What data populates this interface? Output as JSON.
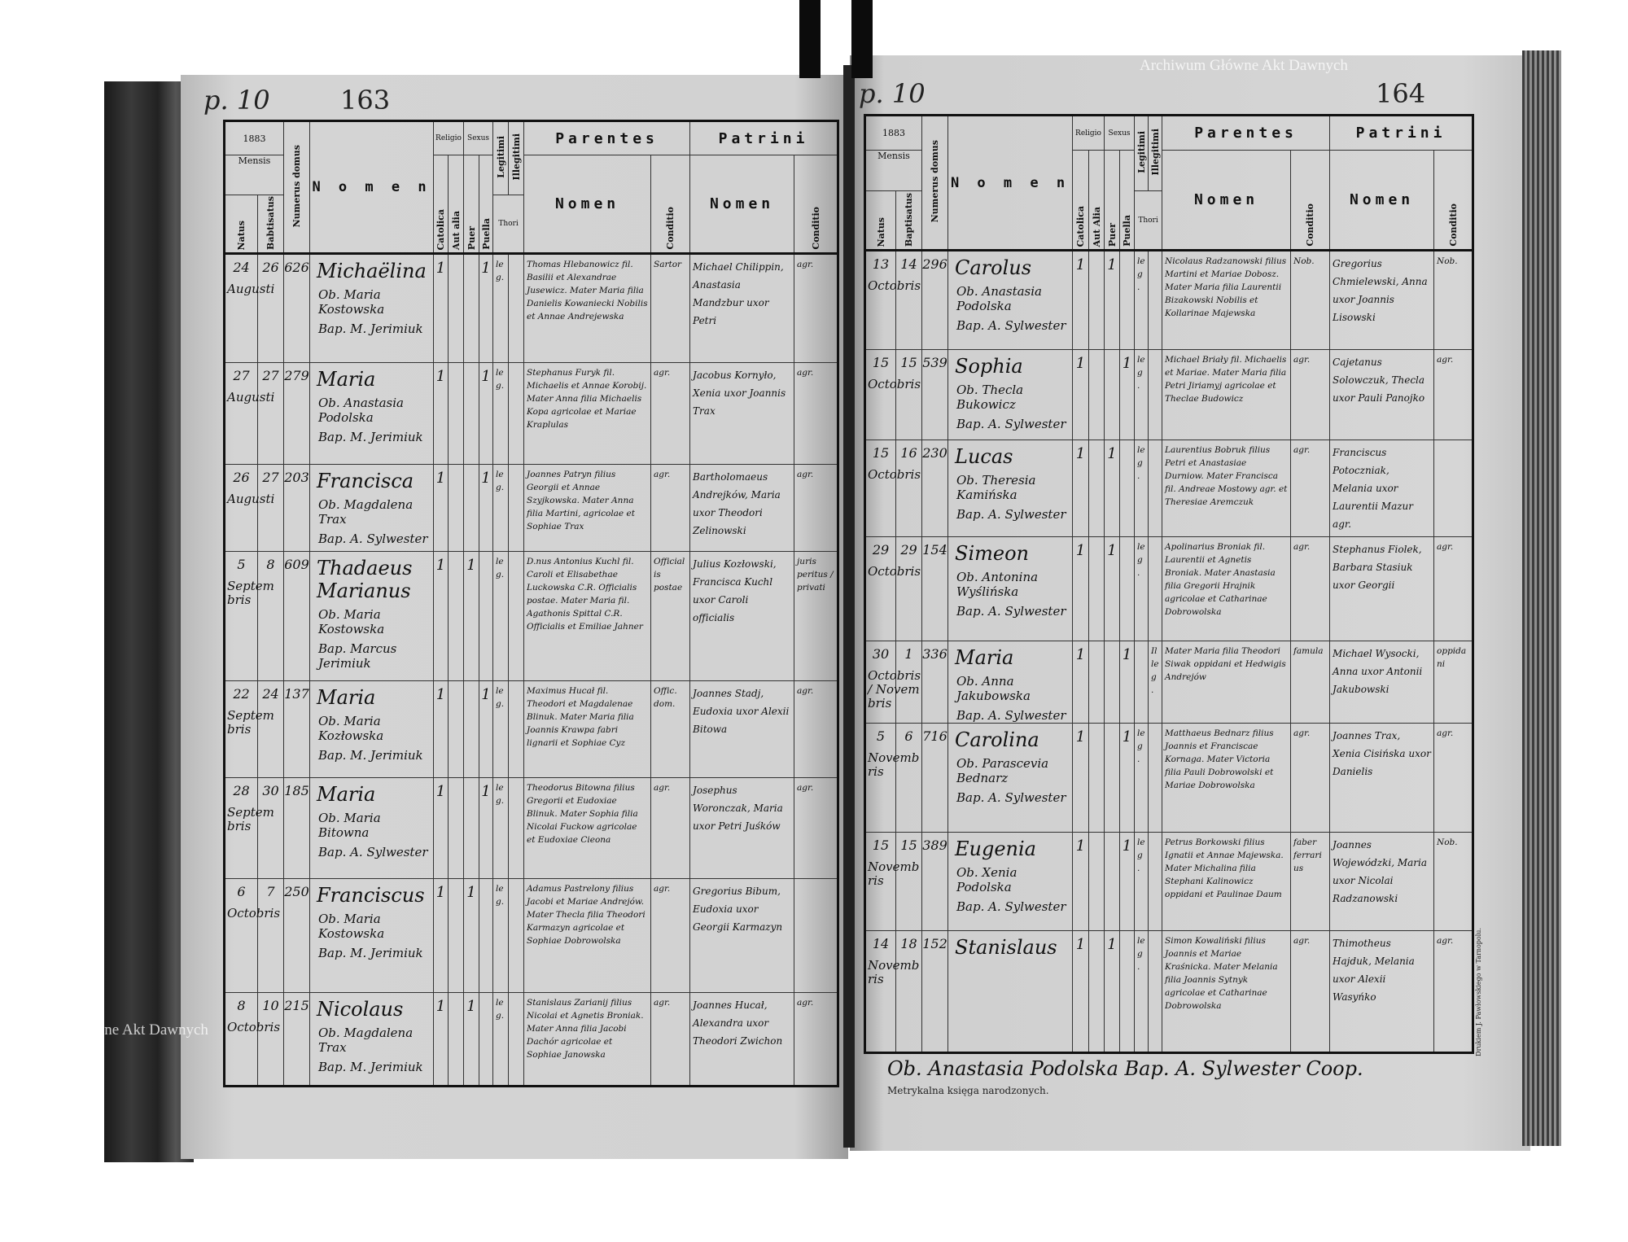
{
  "left_page": {
    "folio_mark": "p. 10",
    "page_number": "163",
    "header": {
      "year": "1883",
      "mensis": "Mensis",
      "natus": "Natus",
      "baptisatus": "Babtisatus",
      "numerus_domus": "Numerus domus",
      "nomen": "N o m e n",
      "religio": "Religio",
      "catolica": "Catolica",
      "aut_alia": "Aut alia",
      "sexus": "Sexus",
      "puer": "Puer",
      "puella": "Puella",
      "legitimi": "Legitimi",
      "illegitimi": "Illegitimi",
      "thori": "Thori",
      "parentes": "Parentes",
      "parentes_nomen": "Nomen",
      "parentes_conditio": "Conditio",
      "patrini": "Patrini",
      "patrini_nomen": "Nomen",
      "patrini_conditio": "Conditio"
    },
    "rows": [
      {
        "natus": "24",
        "baptisatus": "26",
        "mensis": "Augusti",
        "domus": "626",
        "nomen": "Michaëlina",
        "obstetrix": "Ob. Maria Kostowska",
        "baptizans": "Bap. M. Jerimiuk",
        "catolica": "1",
        "aut_alia": "",
        "puer": "",
        "puella": "1",
        "legitimi": "leg.",
        "illegitimi": "",
        "parentes": "Thomas Hlebanowicz fil. Basilii et Alexandrae Jusewicz. Mater Maria filia Danielis Kowaniecki Nobilis et Annae Andrejewska",
        "parentes_conditio": "Sartor",
        "patrini": "Michael Chilippin, Anastasia Mandzbur uxor Petri",
        "patrini_conditio": "agr."
      },
      {
        "natus": "27",
        "baptisatus": "27",
        "mensis": "Augusti",
        "domus": "279",
        "nomen": "Maria",
        "obstetrix": "Ob. Anastasia Podolska",
        "baptizans": "Bap. M. Jerimiuk",
        "catolica": "1",
        "aut_alia": "",
        "puer": "",
        "puella": "1",
        "legitimi": "leg.",
        "illegitimi": "",
        "parentes": "Stephanus Furyk fil. Michaelis et Annae Korobij. Mater Anna filia Michaelis Kopa agricolae et Mariae Kraplulas",
        "parentes_conditio": "agr.",
        "patrini": "Jacobus Kornyło, Xenia uxor Joannis Trax",
        "patrini_conditio": "agr."
      },
      {
        "natus": "26",
        "baptisatus": "27",
        "mensis": "Augusti",
        "domus": "203",
        "nomen": "Francisca",
        "obstetrix": "Ob. Magdalena Trax",
        "baptizans": "Bap. A. Sylwester",
        "catolica": "1",
        "aut_alia": "",
        "puer": "",
        "puella": "1",
        "legitimi": "leg.",
        "illegitimi": "",
        "parentes": "Joannes Patryn filius Georgii et Annae Szyjkowska. Mater Anna filia Martini, agricolae et Sophiae Trax",
        "parentes_conditio": "agr.",
        "patrini": "Bartholomaeus Andrejków, Maria uxor Theodori Zelinowski",
        "patrini_conditio": "agr."
      },
      {
        "natus": "5",
        "baptisatus": "8",
        "mensis": "Septembris",
        "domus": "609",
        "nomen": "Thadaeus Marianus",
        "obstetrix": "Ob. Maria Kostowska",
        "baptizans": "Bap. Marcus Jerimiuk",
        "catolica": "1",
        "aut_alia": "",
        "puer": "1",
        "puella": "",
        "legitimi": "leg.",
        "illegitimi": "",
        "parentes": "D.nus Antonius Kuchl fil. Caroli et Elisabethae Luckowska C.R. Officialis postae. Mater Maria fil. Agathonis Spittal C.R. Officialis et Emiliae Jahner",
        "parentes_conditio": "Officialis postae",
        "patrini": "Julius Kozłowski, Francisca Kuchl uxor Caroli officialis",
        "patrini_conditio": "juris peritus / privati"
      },
      {
        "natus": "22",
        "baptisatus": "24",
        "mensis": "Septembris",
        "domus": "137",
        "nomen": "Maria",
        "obstetrix": "Ob. Maria Kozłowska",
        "baptizans": "Bap. M. Jerimiuk",
        "catolica": "1",
        "aut_alia": "",
        "puer": "",
        "puella": "1",
        "legitimi": "leg.",
        "illegitimi": "",
        "parentes": "Maximus Hucał fil. Theodori et Magdalenae Blinuk. Mater Maria filia Joannis Krawpa fabri lignarii et Sophiae Cyz",
        "parentes_conditio": "Offic. dom.",
        "patrini": "Joannes Stadj, Eudoxia uxor Alexii Bitowa",
        "patrini_conditio": "agr."
      },
      {
        "natus": "28",
        "baptisatus": "30",
        "mensis": "Septembris",
        "domus": "185",
        "nomen": "Maria",
        "obstetrix": "Ob. Maria Bitowna",
        "baptizans": "Bap. A. Sylwester",
        "catolica": "1",
        "aut_alia": "",
        "puer": "",
        "puella": "1",
        "legitimi": "leg.",
        "illegitimi": "",
        "parentes": "Theodorus Bitowna filius Gregorii et Eudoxiae Blinuk. Mater Sophia filia Nicolai Fuckow agricolae et Eudoxiae Cieona",
        "parentes_conditio": "agr.",
        "patrini": "Josephus Woronczak, Maria uxor Petri Juśków",
        "patrini_conditio": "agr."
      },
      {
        "natus": "6",
        "baptisatus": "7",
        "mensis": "Octobris",
        "domus": "250",
        "nomen": "Franciscus",
        "obstetrix": "Ob. Maria Kostowska",
        "baptizans": "Bap. M. Jerimiuk",
        "catolica": "1",
        "aut_alia": "",
        "puer": "1",
        "puella": "",
        "legitimi": "leg.",
        "illegitimi": "",
        "parentes": "Adamus Pastrelony filius Jacobi et Mariae Andrejów. Mater Thecla filia Theodori Karmazyn agricolae et Sophiae Dobrowolska",
        "parentes_conditio": "agr.",
        "patrini": "Gregorius Bibum, Eudoxia uxor Georgii Karmazyn",
        "patrini_conditio": ""
      },
      {
        "natus": "8",
        "baptisatus": "10",
        "mensis": "Octobris",
        "domus": "215",
        "nomen": "Nicolaus",
        "obstetrix": "Ob. Magdalena Trax",
        "baptizans": "Bap. M. Jerimiuk",
        "catolica": "1",
        "aut_alia": "",
        "puer": "1",
        "puella": "",
        "legitimi": "leg.",
        "illegitimi": "",
        "parentes": "Stanislaus Zarianij filius Nicolai et Agnetis Broniak. Mater Anna filia Jacobi Dachór agricolae et Sophiae Janowska",
        "parentes_conditio": "agr.",
        "patrini": "Joannes Hucał, Alexandra uxor Theodori Zwichon",
        "patrini_conditio": "agr."
      }
    ]
  },
  "right_page": {
    "folio_mark": "p. 10",
    "page_number": "164",
    "header": {
      "year": "1883",
      "mensis": "Mensis",
      "natus": "Natus",
      "baptisatus": "Baptisatus",
      "numerus_domus": "Numerus domus",
      "nomen": "N o m e n",
      "religio": "Religio",
      "catolica": "Catolica",
      "aut_alia": "Aut Alia",
      "sexus": "Sexus",
      "puer": "Puer",
      "puella": "Puella",
      "legitimi": "Legitimi",
      "illegitimi": "Illegitimi",
      "thori": "Thori",
      "parentes": "Parentes",
      "parentes_nomen": "Nomen",
      "parentes_conditio": "Conditio",
      "patrini": "Patrini",
      "patrini_nomen": "Nomen",
      "patrini_conditio": "Conditio"
    },
    "rows": [
      {
        "natus": "13",
        "baptisatus": "14",
        "mensis": "Octobris",
        "domus": "296",
        "nomen": "Carolus",
        "obstetrix": "Ob. Anastasia Podolska",
        "baptizans": "Bap. A. Sylwester",
        "catolica": "1",
        "aut_alia": "",
        "puer": "1",
        "puella": "",
        "legitimi": "leg.",
        "illegitimi": "",
        "parentes": "Nicolaus Radzanowski filius Martini et Mariae Dobosz. Mater Maria filia Laurentii Bizakowski Nobilis et Kollarinae Majewska",
        "parentes_conditio": "Nob.",
        "patrini": "Gregorius Chmielewski, Anna uxor Joannis Lisowski",
        "patrini_conditio": "Nob."
      },
      {
        "natus": "15",
        "baptisatus": "15",
        "mensis": "Octobris",
        "domus": "539",
        "nomen": "Sophia",
        "obstetrix": "Ob. Thecla Bukowicz",
        "baptizans": "Bap. A. Sylwester",
        "catolica": "1",
        "aut_alia": "",
        "puer": "",
        "puella": "1",
        "legitimi": "leg.",
        "illegitimi": "",
        "parentes": "Michael Briały fil. Michaelis et Mariae. Mater Maria filia Petri Jiriamyj agricolae et Theclae Budowicz",
        "parentes_conditio": "agr.",
        "patrini": "Cajetanus Solowczuk, Thecla uxor Pauli Panojko",
        "patrini_conditio": "agr."
      },
      {
        "natus": "15",
        "baptisatus": "16",
        "mensis": "Octobris",
        "domus": "230",
        "nomen": "Lucas",
        "obstetrix": "Ob. Theresia Kamińska",
        "baptizans": "Bap. A. Sylwester",
        "catolica": "1",
        "aut_alia": "",
        "puer": "1",
        "puella": "",
        "legitimi": "leg.",
        "illegitimi": "",
        "parentes": "Laurentius Bobruk filius Petri et Anastasiae Durniow. Mater Francisca fil. Andreae Mostowy agr. et Theresiae Aremczuk",
        "parentes_conditio": "agr.",
        "patrini": "Franciscus Potoczniak, Melania uxor Laurentii Mazur agr.",
        "patrini_conditio": ""
      },
      {
        "natus": "29",
        "baptisatus": "29",
        "mensis": "Octobris",
        "domus": "154",
        "nomen": "Simeon",
        "obstetrix": "Ob. Antonina Wyślińska",
        "baptizans": "Bap. A. Sylwester",
        "catolica": "1",
        "aut_alia": "",
        "puer": "1",
        "puella": "",
        "legitimi": "leg.",
        "illegitimi": "",
        "parentes": "Apolinarius Broniak fil. Laurentii et Agnetis Broniak. Mater Anastasia filia Gregorii Hrajnik agricolae et Catharinae Dobrowolska",
        "parentes_conditio": "agr.",
        "patrini": "Stephanus Fiolek, Barbara Stasiuk uxor Georgii",
        "patrini_conditio": "agr."
      },
      {
        "natus": "30",
        "baptisatus": "1",
        "mensis": "Octobris / Novembris",
        "domus": "336",
        "nomen": "Maria",
        "obstetrix": "Ob. Anna Jakubowska",
        "baptizans": "Bap. A. Sylwester",
        "catolica": "1",
        "aut_alia": "",
        "puer": "",
        "puella": "1",
        "legitimi": "",
        "illegitimi": "Illeg.",
        "parentes": "Mater Maria filia Theodori Siwak oppidani et Hedwigis Andrejów",
        "parentes_conditio": "famula",
        "patrini": "Michael Wysocki, Anna uxor Antonii Jakubowski",
        "patrini_conditio": "oppidani"
      },
      {
        "natus": "5",
        "baptisatus": "6",
        "mensis": "Novembris",
        "domus": "716",
        "nomen": "Carolina",
        "obstetrix": "Ob. Parascevia Bednarz",
        "baptizans": "Bap. A. Sylwester",
        "catolica": "1",
        "aut_alia": "",
        "puer": "",
        "puella": "1",
        "legitimi": "leg.",
        "illegitimi": "",
        "parentes": "Matthaeus Bednarz filius Joannis et Franciscae Kornaga. Mater Victoria filia Pauli Dobrowolski et Mariae Dobrowolska",
        "parentes_conditio": "agr.",
        "patrini": "Joannes Trax, Xenia Cisińska uxor Danielis",
        "patrini_conditio": "agr."
      },
      {
        "natus": "15",
        "baptisatus": "15",
        "mensis": "Novembris",
        "domus": "389",
        "nomen": "Eugenia",
        "obstetrix": "Ob. Xenia Podolska",
        "baptizans": "Bap. A. Sylwester",
        "catolica": "1",
        "aut_alia": "",
        "puer": "",
        "puella": "1",
        "legitimi": "leg.",
        "illegitimi": "",
        "parentes": "Petrus Borkowski filius Ignatii et Annae Majewska. Mater Michalina filia Stephani Kalinowicz oppidani et Paulinae Daum",
        "parentes_conditio": "faber ferrarius",
        "patrini": "Joannes Wojewódzki, Maria uxor Nicolai Radzanowski",
        "patrini_conditio": "Nob."
      },
      {
        "natus": "14",
        "baptisatus": "18",
        "mensis": "Novembris",
        "domus": "152",
        "nomen": "Stanislaus",
        "obstetrix": "",
        "baptizans": "",
        "catolica": "1",
        "aut_alia": "",
        "puer": "1",
        "puella": "",
        "legitimi": "leg.",
        "illegitimi": "",
        "parentes": "Simon Kowaliński filius Joannis et Mariae Kraśnicka. Mater Melania filia Joannis Sytnyk agricolae et Catharinae Dobrowolska",
        "parentes_conditio": "agr.",
        "patrini": "Thimotheus Hajduk, Melania uxor Alexii Wasyńko",
        "patrini_conditio": "agr."
      }
    ],
    "signature_line": "Ob. Anastasia Podolska   Bap. A. Sylwester Coop.",
    "footer": "Metrykalna księga narodzonych.",
    "printer_note": "Drukiem J. Pawłowskiego w Tarnopolu."
  },
  "watermark": "Archiwum Główne Akt Dawnych",
  "colors": {
    "paper": "#d2d2d2",
    "ink": "#111111",
    "binding": "#2a2a2a"
  }
}
